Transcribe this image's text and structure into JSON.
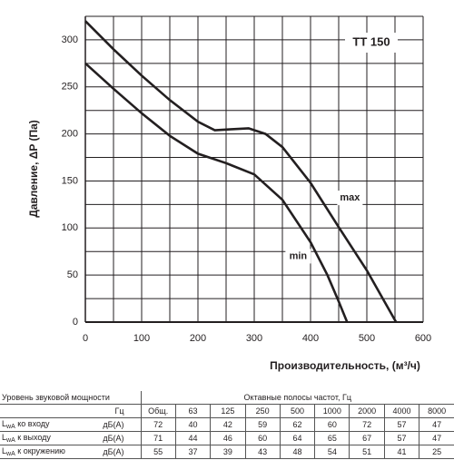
{
  "chart_data": {
    "type": "line",
    "title": "TT 150",
    "xlabel": "Производительность, (м³/ч)",
    "ylabel": "Давление, ΔP (Па)",
    "xlim": [
      0,
      600
    ],
    "ylim": [
      0,
      325
    ],
    "xticks": [
      0,
      100,
      200,
      300,
      400,
      500,
      600
    ],
    "yticks": [
      0,
      50,
      100,
      150,
      200,
      250,
      300
    ],
    "xgrid": [
      0,
      50,
      100,
      150,
      200,
      250,
      300,
      350,
      400,
      450,
      500,
      550,
      600
    ],
    "ygrid": [
      0,
      25,
      50,
      75,
      100,
      125,
      150,
      175,
      200,
      225,
      250,
      275,
      300,
      325
    ],
    "grid": true,
    "series": [
      {
        "name": "max",
        "color": "#231f20",
        "x": [
          0,
          50,
          100,
          150,
          200,
          230,
          260,
          290,
          320,
          350,
          400,
          450,
          500,
          552
        ],
        "values": [
          320,
          290,
          262,
          236,
          213,
          204,
          205,
          206,
          200,
          186,
          148,
          101,
          55,
          0
        ]
      },
      {
        "name": "min",
        "color": "#231f20",
        "x": [
          0,
          50,
          100,
          150,
          200,
          250,
          300,
          350,
          400,
          430,
          450,
          465
        ],
        "values": [
          275,
          248,
          222,
          198,
          179,
          169,
          157,
          130,
          85,
          50,
          22,
          0
        ]
      }
    ]
  },
  "sound_table": {
    "header": {
      "left": "Уровень звуковой мощности",
      "right": "Октавные полосы частот, Гц"
    },
    "unit_header": "Гц",
    "columns": [
      "Общ.",
      63,
      125,
      250,
      500,
      1000,
      2000,
      4000,
      8000
    ],
    "rows": [
      {
        "symbol": "L",
        "subscript": "wA",
        "text": "ко входу",
        "unit": "дБ(А)",
        "values": [
          72,
          40,
          42,
          59,
          62,
          60,
          72,
          57,
          47
        ]
      },
      {
        "symbol": "L",
        "subscript": "wA",
        "text": "к выходу",
        "unit": "дБ(А)",
        "values": [
          71,
          44,
          46,
          60,
          64,
          65,
          67,
          57,
          47
        ]
      },
      {
        "symbol": "L",
        "subscript": "wA",
        "text": "к окружению",
        "unit": "дБ(А)",
        "values": [
          55,
          37,
          39,
          43,
          48,
          54,
          51,
          41,
          25
        ]
      }
    ]
  }
}
